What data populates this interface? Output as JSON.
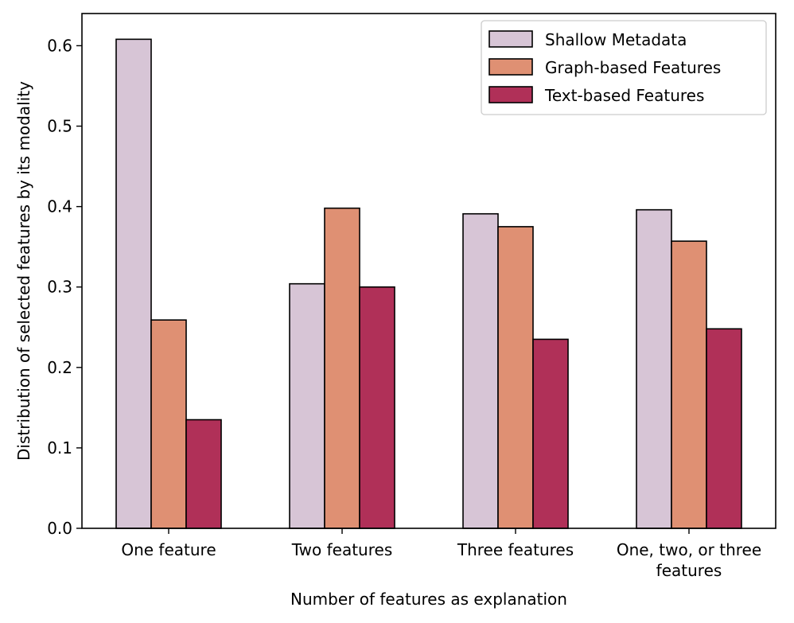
{
  "chart_data": {
    "type": "bar",
    "title": "",
    "xlabel": "Number of features as explanation",
    "ylabel": "Distribution of selected features by its modality",
    "ylim": [
      0,
      0.64
    ],
    "yticks": [
      0.0,
      0.1,
      0.2,
      0.3,
      0.4,
      0.5,
      0.6
    ],
    "ytick_labels": [
      "0.0",
      "0.1",
      "0.2",
      "0.3",
      "0.4",
      "0.5",
      "0.6"
    ],
    "categories": [
      [
        "One feature"
      ],
      [
        "Two features"
      ],
      [
        "Three features"
      ],
      [
        "One, two, or three",
        "features"
      ]
    ],
    "series": [
      {
        "name": "Shallow Metadata",
        "color": "#d7c5d6",
        "values": [
          0.608,
          0.304,
          0.391,
          0.396
        ]
      },
      {
        "name": "Graph-based Features",
        "color": "#df9073",
        "values": [
          0.259,
          0.398,
          0.375,
          0.357
        ]
      },
      {
        "name": "Text-based Features",
        "color": "#b03058",
        "values": [
          0.135,
          0.3,
          0.235,
          0.248
        ]
      }
    ],
    "legend_position": "top-right",
    "grid": false
  }
}
